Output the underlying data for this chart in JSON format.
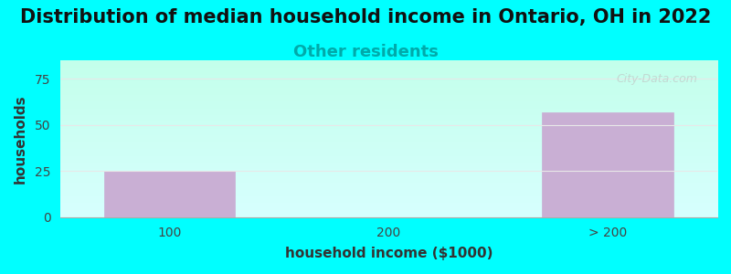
{
  "title": "Distribution of median household income in Ontario, OH in 2022",
  "subtitle": "Other residents",
  "xlabel": "household income ($1000)",
  "ylabel": "households",
  "categories": [
    "100",
    "200",
    "> 200"
  ],
  "values": [
    25,
    0,
    57
  ],
  "bar_color": "#c9afd4",
  "bar_edge_color": "#c9afd4",
  "background_color": "#00ffff",
  "plot_bg_top": "#f0fff0",
  "plot_bg_bottom": "#ffffff",
  "ylim": [
    0,
    85
  ],
  "yticks": [
    0,
    25,
    50,
    75
  ],
  "title_fontsize": 15,
  "subtitle_fontsize": 13,
  "subtitle_color": "#00aaaa",
  "axis_label_fontsize": 11,
  "watermark": "City-Data.com",
  "watermark_color": "#c0c0c0",
  "grid_color": "#e8e8e8"
}
